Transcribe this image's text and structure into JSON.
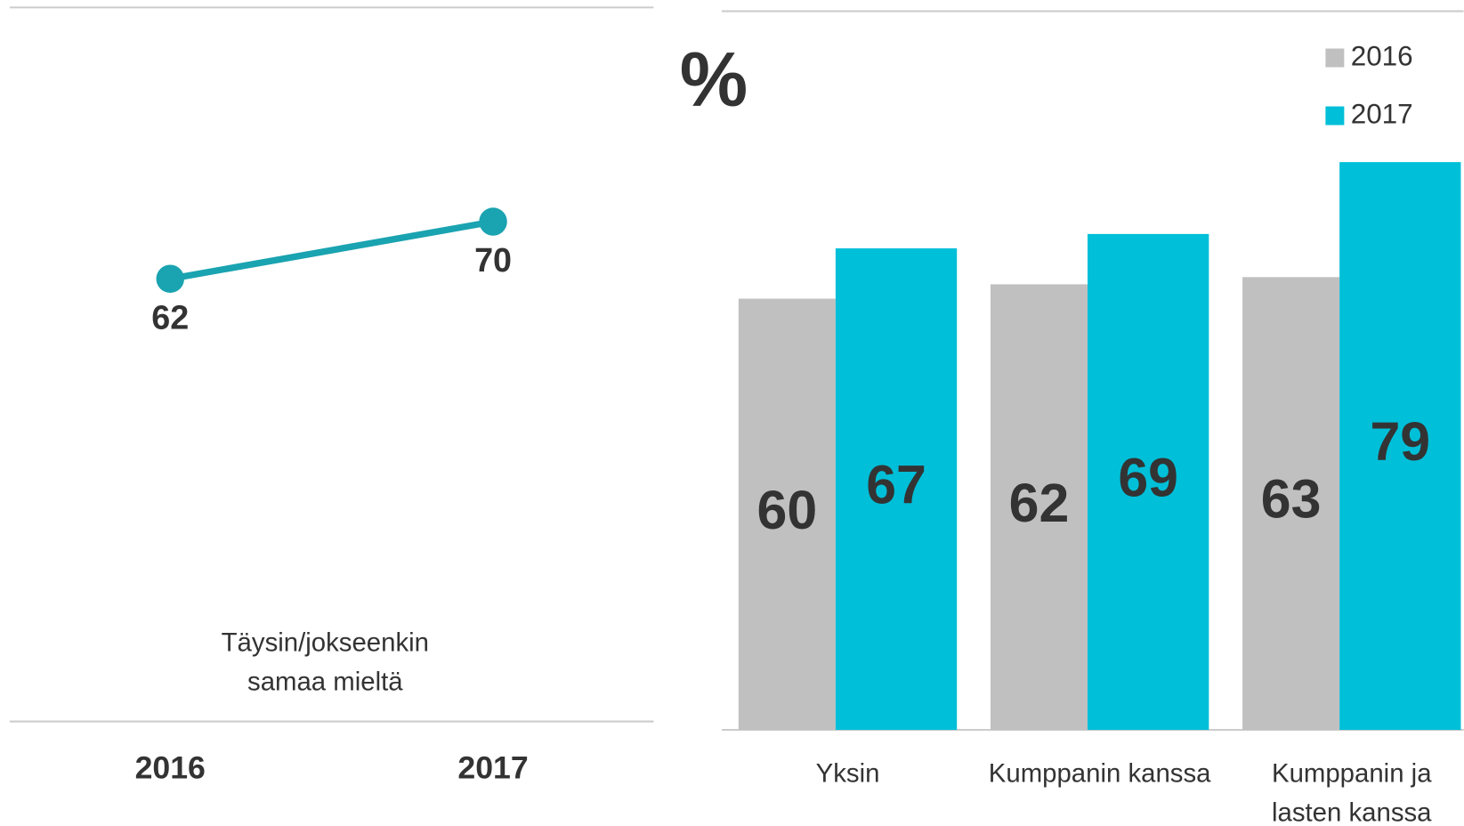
{
  "chart_data": [
    {
      "type": "line",
      "categories": [
        "2016",
        "2017"
      ],
      "series": [
        {
          "name": "Täysin/jokseenkin samaa mieltä",
          "color": "#1aa3b0",
          "values": [
            62,
            70
          ]
        }
      ],
      "ylim": [
        0,
        100
      ]
    },
    {
      "type": "bar",
      "ylabel": "%",
      "categories": [
        "Yksin",
        "Kumppanin kanssa",
        "Kumppanin ja lasten kanssa"
      ],
      "series": [
        {
          "name": "2016",
          "color": "#c0c0c0",
          "values": [
            60,
            62,
            63
          ]
        },
        {
          "name": "2017",
          "color": "#00bfd8",
          "values": [
            67,
            69,
            79
          ]
        }
      ],
      "ylim": [
        0,
        100
      ],
      "legend": "top-right"
    }
  ]
}
